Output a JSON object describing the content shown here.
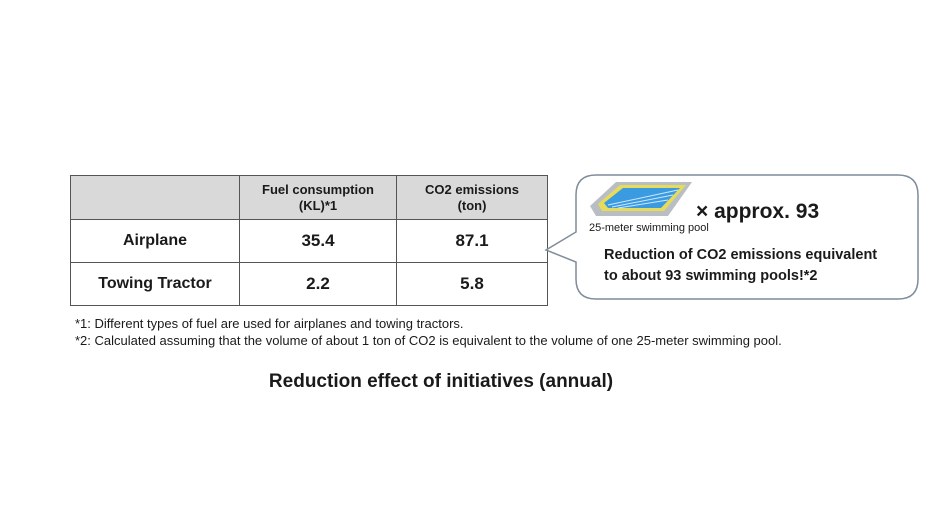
{
  "table": {
    "headers": [
      "",
      "Fuel consumption",
      "(KL)*1",
      "CO2 emissions",
      "(ton)"
    ],
    "rows": [
      {
        "label": "Airplane",
        "fuel": "35.4",
        "co2": "87.1"
      },
      {
        "label": "Towing Tractor",
        "fuel": "2.2",
        "co2": "5.8"
      }
    ]
  },
  "callout": {
    "pool_caption": "25-meter swimming pool",
    "multiplier": "× approx. 93",
    "line1": "Reduction of CO2 emissions equivalent",
    "line2": "to about 93 swimming pools!*2"
  },
  "footnotes": [
    "*1: Different types of fuel are used for airplanes and towing tractors.",
    "*2: Calculated assuming that the volume of about 1 ton of CO2 is equivalent to the volume of one 25-meter swimming pool."
  ],
  "title": "Reduction effect of initiatives (annual)"
}
